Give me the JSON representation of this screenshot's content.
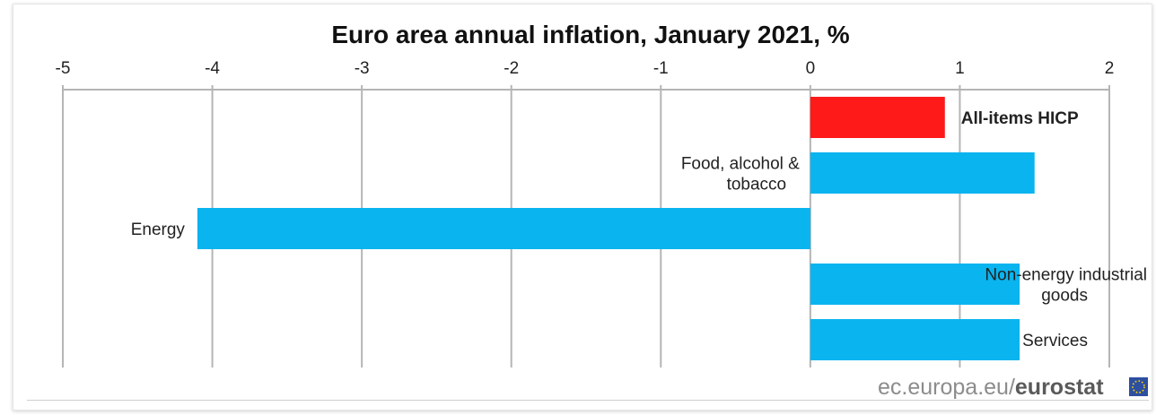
{
  "chart_data": {
    "type": "bar",
    "orientation": "horizontal",
    "title": "Euro area annual inflation, January 2021, %",
    "xlim": [
      -5,
      2
    ],
    "xticks": [
      "-5",
      "-4",
      "-3",
      "-2",
      "-1",
      "0",
      "1",
      "2"
    ],
    "grid": true,
    "categories": [
      {
        "label": [
          "All-items HICP"
        ],
        "value": 0.9,
        "color": "#ff1a1a",
        "bold": true,
        "label_side": "right"
      },
      {
        "label": [
          "Food, alcohol &",
          "tobacco"
        ],
        "value": 1.5,
        "color": "#0ab4ef",
        "bold": false,
        "label_side": "left"
      },
      {
        "label": [
          "Energy"
        ],
        "value": -4.1,
        "color": "#0ab4ef",
        "bold": false,
        "label_side": "left"
      },
      {
        "label": [
          "Non-energy industrial",
          "goods"
        ],
        "value": 1.4,
        "color": "#0ab4ef",
        "bold": false,
        "label_side": "right"
      },
      {
        "label": [
          "Services"
        ],
        "value": 1.4,
        "color": "#0ab4ef",
        "bold": false,
        "label_side": "right"
      }
    ]
  },
  "footer": {
    "source_prefix": "ec.europa.eu/",
    "source_brand": "eurostat",
    "flag_icon": "eu-flag-icon"
  }
}
